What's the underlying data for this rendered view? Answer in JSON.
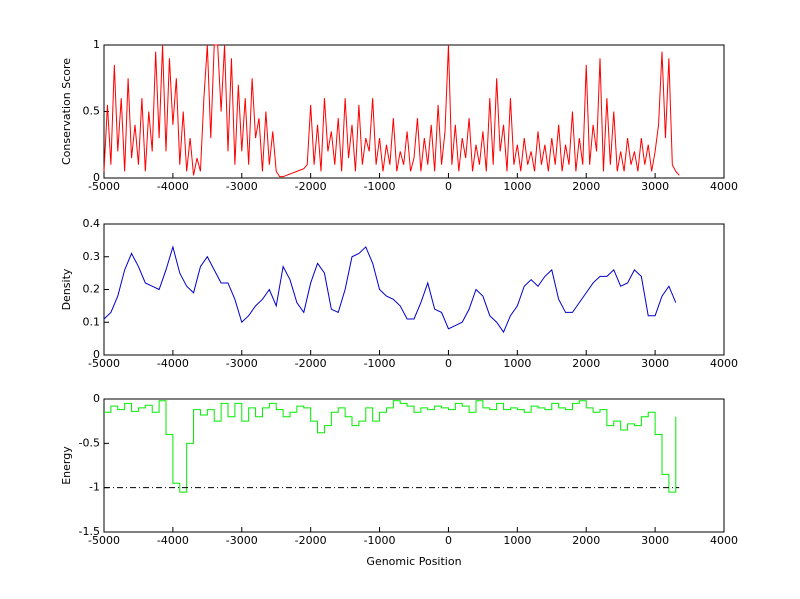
{
  "chart_data": [
    {
      "type": "line",
      "ylabel": "Conservation Score",
      "x": [
        -5000,
        -4950,
        -4900,
        -4850,
        -4800,
        -4750,
        -4700,
        -4650,
        -4600,
        -4550,
        -4500,
        -4450,
        -4400,
        -4350,
        -4300,
        -4250,
        -4200,
        -4150,
        -4100,
        -4050,
        -4000,
        -3950,
        -3900,
        -3850,
        -3800,
        -3750,
        -3700,
        -3650,
        -3600,
        -3550,
        -3500,
        -3450,
        -3400,
        -3350,
        -3300,
        -3250,
        -3200,
        -3150,
        -3100,
        -3050,
        -3000,
        -2950,
        -2900,
        -2850,
        -2800,
        -2750,
        -2700,
        -2650,
        -2600,
        -2550,
        -2500,
        -2450,
        -2400,
        -2350,
        -2300,
        -2250,
        -2200,
        -2150,
        -2100,
        -2050,
        -2000,
        -1950,
        -1900,
        -1850,
        -1800,
        -1750,
        -1700,
        -1650,
        -1600,
        -1550,
        -1500,
        -1450,
        -1400,
        -1350,
        -1300,
        -1250,
        -1200,
        -1150,
        -1100,
        -1050,
        -1000,
        -950,
        -900,
        -850,
        -800,
        -750,
        -700,
        -650,
        -600,
        -550,
        -500,
        -450,
        -400,
        -350,
        -300,
        -250,
        -200,
        -150,
        -100,
        -50,
        0,
        50,
        100,
        150,
        200,
        250,
        300,
        350,
        400,
        450,
        500,
        550,
        600,
        650,
        700,
        750,
        800,
        850,
        900,
        950,
        1000,
        1050,
        1100,
        1150,
        1200,
        1250,
        1300,
        1350,
        1400,
        1450,
        1500,
        1550,
        1600,
        1650,
        1700,
        1750,
        1800,
        1850,
        1900,
        1950,
        2000,
        2050,
        2100,
        2150,
        2200,
        2250,
        2300,
        2350,
        2400,
        2450,
        2500,
        2550,
        2600,
        2650,
        2700,
        2750,
        2800,
        2850,
        2900,
        2950,
        3000,
        3050,
        3100,
        3150,
        3200,
        3250,
        3300,
        3350
      ],
      "series": [
        {
          "color": "#ff0000",
          "values": [
            0.05,
            0.55,
            0.1,
            0.85,
            0.2,
            0.6,
            0.05,
            0.75,
            0.15,
            0.4,
            0.1,
            0.6,
            0.05,
            0.5,
            0.2,
            0.95,
            0.3,
            1,
            0.2,
            0.9,
            0.4,
            0.75,
            0.1,
            0.5,
            0.05,
            0.3,
            0.02,
            0.15,
            0.05,
            0.6,
            1,
            0.3,
            1,
            1,
            0.5,
            1,
            0.2,
            0.9,
            0.1,
            0.7,
            0.2,
            0.6,
            0.1,
            0.75,
            0.3,
            0.45,
            0.05,
            0.5,
            0.1,
            0.35,
            0.05,
            0.01,
            0.01,
            0.02,
            0.03,
            0.04,
            0.05,
            0.06,
            0.07,
            0.1,
            0.55,
            0.1,
            0.4,
            0.05,
            0.6,
            0.2,
            0.35,
            0.1,
            0.45,
            0.05,
            0.6,
            0.15,
            0.4,
            0.05,
            0.55,
            0.1,
            0.3,
            0.2,
            0.6,
            0.1,
            0.3,
            0.05,
            0.25,
            0.1,
            0.45,
            0.05,
            0.2,
            0.1,
            0.35,
            0.05,
            0.15,
            0.45,
            0.05,
            0.3,
            0.1,
            0.4,
            0.05,
            0.55,
            0.1,
            0.35,
            1,
            0.1,
            0.4,
            0.05,
            0.3,
            0.15,
            0.45,
            0.05,
            0.25,
            0.1,
            0.35,
            0.05,
            0.6,
            0.1,
            0.75,
            0.2,
            0.4,
            0.05,
            0.6,
            0.1,
            0.25,
            0.05,
            0.3,
            0.1,
            0.2,
            0.05,
            0.35,
            0.1,
            0.25,
            0.05,
            0.3,
            0.1,
            0.4,
            0.05,
            0.25,
            0.1,
            0.5,
            0.05,
            0.3,
            0.1,
            0.85,
            0.1,
            0.4,
            0.2,
            0.9,
            0.05,
            0.6,
            0.1,
            0.5,
            0.05,
            0.2,
            0.05,
            0.3,
            0.1,
            0.2,
            0.05,
            0.3,
            0.1,
            0.25,
            0.05,
            0.2,
            0.4,
            0.95,
            0.3,
            0.9,
            0.1,
            0.05,
            0.02
          ]
        }
      ],
      "xlim": [
        -5000,
        4000
      ],
      "xticks": [
        -5000,
        -4000,
        -3000,
        -2000,
        -1000,
        0,
        1000,
        2000,
        3000,
        4000
      ],
      "ylim": [
        0,
        1
      ],
      "yticks": [
        0,
        0.5,
        1
      ]
    },
    {
      "type": "line",
      "ylabel": "Density",
      "x": [
        -5000,
        -4900,
        -4800,
        -4700,
        -4600,
        -4500,
        -4400,
        -4300,
        -4200,
        -4100,
        -4000,
        -3900,
        -3800,
        -3700,
        -3600,
        -3500,
        -3400,
        -3300,
        -3200,
        -3100,
        -3000,
        -2900,
        -2800,
        -2700,
        -2600,
        -2500,
        -2400,
        -2300,
        -2200,
        -2100,
        -2000,
        -1900,
        -1800,
        -1700,
        -1600,
        -1500,
        -1400,
        -1300,
        -1200,
        -1100,
        -1000,
        -900,
        -800,
        -700,
        -600,
        -500,
        -400,
        -300,
        -200,
        -100,
        0,
        100,
        200,
        300,
        400,
        500,
        600,
        700,
        800,
        900,
        1000,
        1100,
        1200,
        1300,
        1400,
        1500,
        1600,
        1700,
        1800,
        1900,
        2000,
        2100,
        2200,
        2300,
        2400,
        2500,
        2600,
        2700,
        2800,
        2900,
        3000,
        3100,
        3200,
        3300
      ],
      "series": [
        {
          "color": "#0000cc",
          "values": [
            0.11,
            0.13,
            0.18,
            0.26,
            0.31,
            0.27,
            0.22,
            0.21,
            0.2,
            0.26,
            0.33,
            0.25,
            0.21,
            0.19,
            0.27,
            0.3,
            0.26,
            0.22,
            0.22,
            0.17,
            0.1,
            0.12,
            0.15,
            0.17,
            0.2,
            0.15,
            0.27,
            0.23,
            0.16,
            0.13,
            0.22,
            0.28,
            0.25,
            0.14,
            0.13,
            0.2,
            0.3,
            0.31,
            0.33,
            0.28,
            0.2,
            0.18,
            0.17,
            0.15,
            0.11,
            0.11,
            0.16,
            0.22,
            0.14,
            0.13,
            0.08,
            0.09,
            0.1,
            0.14,
            0.2,
            0.18,
            0.12,
            0.1,
            0.07,
            0.12,
            0.15,
            0.21,
            0.23,
            0.21,
            0.24,
            0.26,
            0.17,
            0.13,
            0.13,
            0.16,
            0.19,
            0.22,
            0.24,
            0.24,
            0.26,
            0.21,
            0.22,
            0.26,
            0.24,
            0.12,
            0.12,
            0.18,
            0.21,
            0.16
          ]
        }
      ],
      "xlim": [
        -5000,
        4000
      ],
      "xticks": [
        -5000,
        -4000,
        -3000,
        -2000,
        -1000,
        0,
        1000,
        2000,
        3000,
        4000
      ],
      "ylim": [
        0,
        0.4
      ],
      "yticks": [
        0,
        0.1,
        0.2,
        0.3,
        0.4
      ]
    },
    {
      "type": "line",
      "ylabel": "Energy",
      "xlabel": "Genomic Position",
      "x": [
        -5000,
        -4900,
        -4800,
        -4700,
        -4600,
        -4500,
        -4400,
        -4300,
        -4200,
        -4100,
        -4000,
        -3900,
        -3800,
        -3700,
        -3600,
        -3500,
        -3400,
        -3300,
        -3200,
        -3100,
        -3000,
        -2900,
        -2800,
        -2700,
        -2600,
        -2500,
        -2400,
        -2300,
        -2200,
        -2100,
        -2000,
        -1900,
        -1800,
        -1700,
        -1600,
        -1500,
        -1400,
        -1300,
        -1200,
        -1100,
        -1000,
        -900,
        -800,
        -700,
        -600,
        -500,
        -400,
        -300,
        -200,
        -100,
        0,
        100,
        200,
        300,
        400,
        500,
        600,
        700,
        800,
        900,
        1000,
        1100,
        1200,
        1300,
        1400,
        1500,
        1600,
        1700,
        1800,
        1900,
        2000,
        2100,
        2200,
        2300,
        2400,
        2500,
        2600,
        2700,
        2800,
        2900,
        3000,
        3100,
        3200,
        3300
      ],
      "series": [
        {
          "color": "#00ee00",
          "drawstyle": "steps",
          "values": [
            -0.15,
            -0.08,
            -0.12,
            -0.05,
            -0.14,
            -0.1,
            -0.07,
            -0.15,
            -0.02,
            -0.4,
            -0.95,
            -1.05,
            -0.5,
            -0.12,
            -0.18,
            -0.12,
            -0.25,
            -0.05,
            -0.2,
            -0.05,
            -0.25,
            -0.1,
            -0.2,
            -0.1,
            -0.05,
            -0.12,
            -0.2,
            -0.15,
            -0.08,
            -0.1,
            -0.25,
            -0.38,
            -0.3,
            -0.15,
            -0.1,
            -0.2,
            -0.3,
            -0.25,
            -0.1,
            -0.25,
            -0.15,
            -0.1,
            -0.02,
            -0.05,
            -0.08,
            -0.15,
            -0.1,
            -0.12,
            -0.08,
            -0.1,
            -0.12,
            -0.05,
            -0.08,
            -0.15,
            -0.02,
            -0.1,
            -0.12,
            -0.05,
            -0.12,
            -0.1,
            -0.12,
            -0.15,
            -0.08,
            -0.1,
            -0.12,
            -0.05,
            -0.1,
            -0.12,
            -0.05,
            -0.02,
            -0.1,
            -0.15,
            -0.12,
            -0.3,
            -0.25,
            -0.35,
            -0.28,
            -0.3,
            -0.2,
            -0.15,
            -0.4,
            -0.85,
            -1.05,
            -0.2
          ]
        },
        {
          "color": "#000000",
          "dash": "dashdot",
          "x": [
            -5000,
            3350
          ],
          "values": [
            -1,
            -1
          ]
        }
      ],
      "xlim": [
        -5000,
        4000
      ],
      "xticks": [
        -5000,
        -4000,
        -3000,
        -2000,
        -1000,
        0,
        1000,
        2000,
        3000,
        4000
      ],
      "ylim": [
        -1.5,
        0
      ],
      "yticks": [
        -1.5,
        -1,
        -0.5,
        0
      ]
    }
  ]
}
